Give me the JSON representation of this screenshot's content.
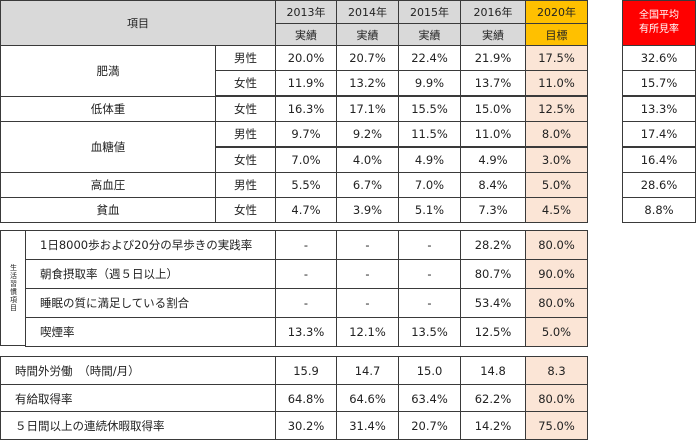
{
  "header": {
    "item_label": "項目",
    "years": [
      "2013年",
      "2014年",
      "2015年",
      "2016年",
      "2020年"
    ],
    "sub": [
      "実績",
      "実績",
      "実績",
      "実績",
      "目標"
    ],
    "avg_line1": "全国平均",
    "avg_line2": "有所見率"
  },
  "health": [
    {
      "label": "肥満",
      "sex": "男性",
      "values": [
        "20.0%",
        "20.7%",
        "22.4%",
        "21.9%",
        "17.5%"
      ],
      "avg": "32.6%"
    },
    {
      "label": "",
      "sex": "女性",
      "values": [
        "11.9%",
        "13.2%",
        "9.9%",
        "13.7%",
        "11.0%"
      ],
      "avg": "15.7%"
    },
    {
      "label": "低体重",
      "sex": "女性",
      "values": [
        "16.3%",
        "17.1%",
        "15.5%",
        "15.0%",
        "12.5%"
      ],
      "avg": "13.3%"
    },
    {
      "label": "血糖値",
      "sex": "男性",
      "values": [
        "9.7%",
        "9.2%",
        "11.5%",
        "11.0%",
        "8.0%"
      ],
      "avg": "17.4%"
    },
    {
      "label": "",
      "sex": "女性",
      "values": [
        "7.0%",
        "4.0%",
        "4.9%",
        "4.9%",
        "3.0%"
      ],
      "avg": "16.4%"
    },
    {
      "label": "高血圧",
      "sex": "男性",
      "values": [
        "5.5%",
        "6.7%",
        "7.0%",
        "8.4%",
        "5.0%"
      ],
      "avg": "28.6%"
    },
    {
      "label": "貧血",
      "sex": "女性",
      "values": [
        "4.7%",
        "3.9%",
        "5.1%",
        "7.3%",
        "4.5%"
      ],
      "avg": "8.8%"
    }
  ],
  "lifestyle": {
    "side_label": "生活習慣項目",
    "rows": [
      {
        "label": "1日8000歩および20分の早歩きの実践率",
        "values": [
          "-",
          "-",
          "-",
          "28.2%",
          "80.0%"
        ]
      },
      {
        "label": "朝食摂取率（週５日以上）",
        "values": [
          "-",
          "-",
          "-",
          "80.7%",
          "90.0%"
        ]
      },
      {
        "label": "睡眠の質に満足している割合",
        "values": [
          "-",
          "-",
          "-",
          "53.4%",
          "80.0%"
        ]
      },
      {
        "label": "喫煙率",
        "values": [
          "13.3%",
          "12.1%",
          "13.5%",
          "12.5%",
          "5.0%"
        ]
      }
    ]
  },
  "work": [
    {
      "label": "時間外労働　（時間/月）",
      "values": [
        "15.9",
        "14.7",
        "15.0",
        "14.8",
        "8.3"
      ]
    },
    {
      "label": "有給取得率",
      "values": [
        "64.8%",
        "64.6%",
        "63.4%",
        "62.2%",
        "80.0%"
      ]
    },
    {
      "label": "５日間以上の連続休暇取得率",
      "values": [
        "30.2%",
        "31.4%",
        "20.7%",
        "14.2%",
        "75.0%"
      ]
    }
  ]
}
